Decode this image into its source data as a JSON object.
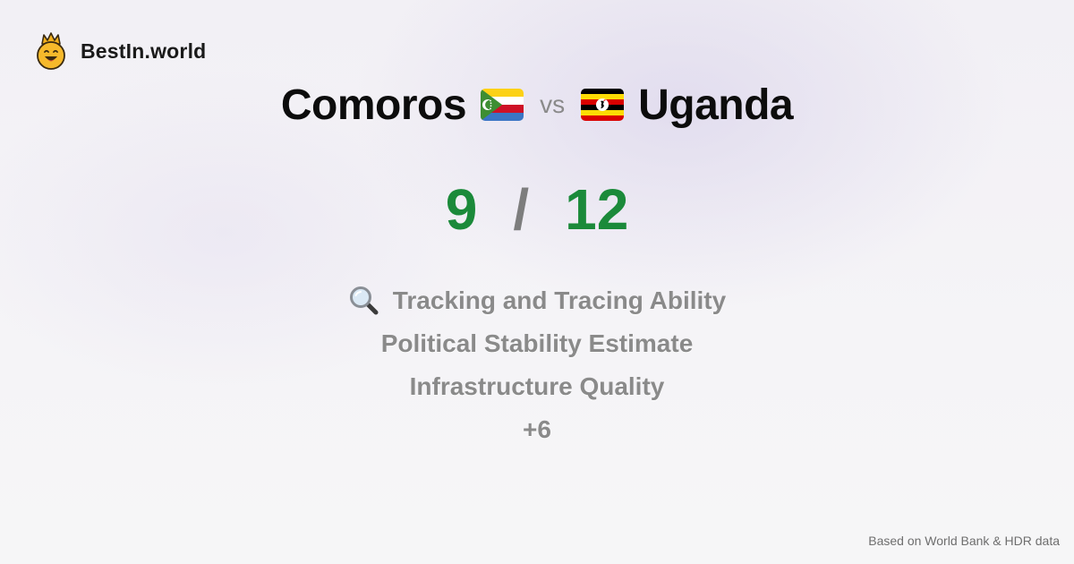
{
  "brand": {
    "name": "BestIn.world",
    "logo_icon": "crowned-smiley-icon"
  },
  "comparison": {
    "left_country": "Comoros",
    "left_flag_icon": "comoros-flag-icon",
    "vs_label": "vs",
    "right_country": "Uganda",
    "right_flag_icon": "uganda-flag-icon"
  },
  "score": {
    "left": "9",
    "separator": "/",
    "right": "12",
    "color": "#1b8a3a"
  },
  "criteria": {
    "icon": "magnifying-glass-icon",
    "items": [
      "Tracking and Tracing Ability",
      "Political Stability Estimate",
      "Infrastructure Quality"
    ],
    "more": "+6"
  },
  "footer": {
    "source": "Based on World Bank & HDR data"
  }
}
